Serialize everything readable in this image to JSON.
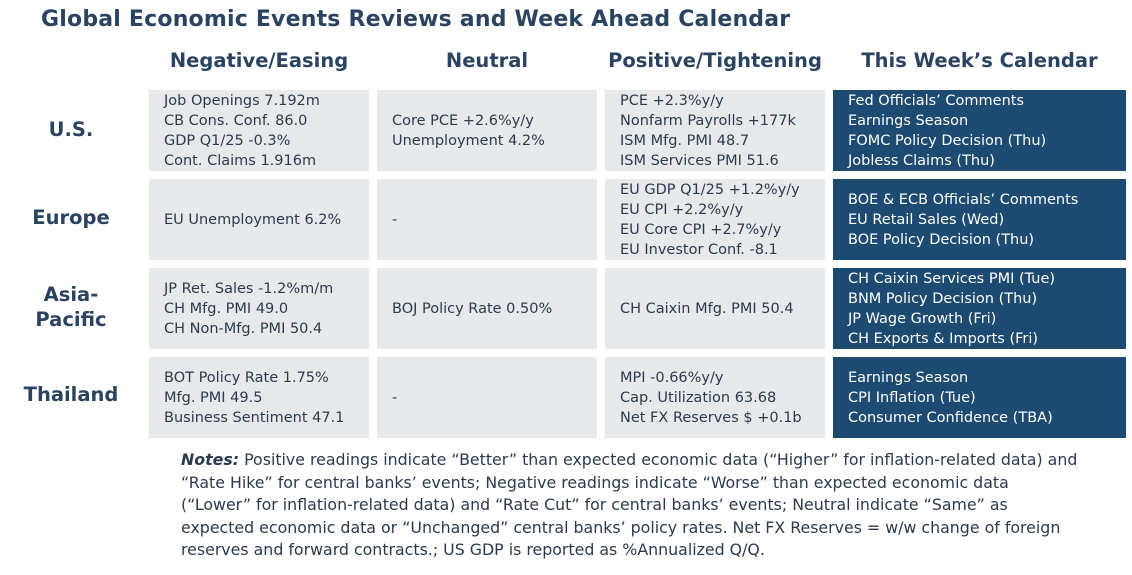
{
  "title": "Global Economic Events Reviews and Week Ahead Calendar",
  "columns": [
    "Negative/Easing",
    "Neutral",
    "Positive/Tightening",
    "This Week’s Calendar"
  ],
  "rows": [
    {
      "label": "U.S.",
      "negative": [
        "Job Openings 7.192m",
        "CB Cons. Conf. 86.0",
        "GDP Q1/25 -0.3%",
        "Cont. Claims 1.916m"
      ],
      "neutral": [
        "Core PCE +2.6%y/y",
        "Unemployment 4.2%"
      ],
      "positive": [
        "PCE +2.3%y/y",
        "Nonfarm Payrolls +177k",
        "ISM Mfg. PMI 48.7",
        "ISM Services PMI 51.6"
      ],
      "calendar": [
        "Fed Officials’ Comments",
        "Earnings Season",
        "FOMC Policy Decision (Thu)",
        "Jobless Claims (Thu)"
      ]
    },
    {
      "label": "Europe",
      "negative": [
        "EU Unemployment 6.2%"
      ],
      "neutral": [
        "-"
      ],
      "positive": [
        "EU GDP Q1/25 +1.2%y/y",
        "EU CPI +2.2%y/y",
        "EU Core CPI +2.7%y/y",
        "EU Investor Conf. -8.1"
      ],
      "calendar": [
        "BOE & ECB Officials’ Comments",
        "EU Retail Sales (Wed)",
        "BOE Policy Decision (Thu)"
      ]
    },
    {
      "label_lines": [
        "Asia-",
        "Pacific"
      ],
      "negative": [
        "JP Ret. Sales -1.2%m/m",
        "CH Mfg. PMI 49.0",
        "CH Non-Mfg. PMI 50.4"
      ],
      "neutral": [
        "BOJ Policy Rate 0.50%"
      ],
      "positive": [
        "CH Caixin Mfg. PMI 50.4"
      ],
      "calendar": [
        "CH Caixin Services PMI (Tue)",
        "BNM Policy Decision (Thu)",
        "JP Wage Growth (Fri)",
        "CH Exports & Imports (Fri)"
      ]
    },
    {
      "label": "Thailand",
      "negative": [
        "BOT Policy Rate 1.75%",
        "Mfg. PMI 49.5",
        "Business Sentiment 47.1"
      ],
      "neutral": [
        "-"
      ],
      "positive": [
        "MPI -0.66%y/y",
        "Cap. Utilization 63.68",
        "Net FX Reserves $ +0.1b"
      ],
      "calendar": [
        "Earnings Season",
        "CPI Inflation (Tue)",
        "Consumer Confidence (TBA)"
      ]
    }
  ],
  "notes": {
    "label": "Notes:",
    "text": " Positive readings indicate “Better” than expected economic data (“Higher” for inflation-related data) and “Rate Hike” for central banks’ events; Negative readings indicate “Worse” than expected economic data (“Lower” for inflation-related data) and “Rate Cut” for central banks’ events; Neutral indicate “Same” as expected economic data or “Unchanged” central banks’ policy rates. Net FX Reserves = w/w change of foreign reserves and forward contracts.; US GDP is reported as %Annualized Q/Q."
  }
}
